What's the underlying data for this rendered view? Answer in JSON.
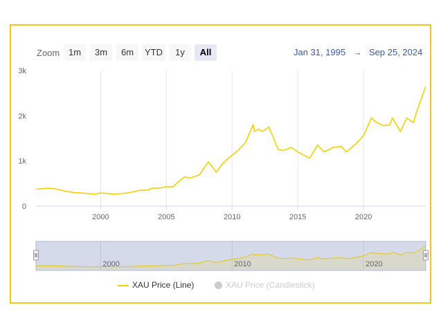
{
  "range_selector": {
    "zoom_label": "Zoom",
    "buttons": [
      "1m",
      "3m",
      "6m",
      "YTD",
      "1y",
      "All"
    ],
    "active": "All"
  },
  "date_range": {
    "from": "Jan 31, 1995",
    "arrow": "→",
    "to": "Sep 25, 2024"
  },
  "chart_data": {
    "type": "line",
    "title": "",
    "xlabel": "",
    "ylabel": "",
    "xlim": [
      1995.08,
      2024.73
    ],
    "ylim": [
      0,
      3000
    ],
    "x_ticks": [
      2000,
      2005,
      2010,
      2015,
      2020
    ],
    "x_tick_labels": [
      "2000",
      "2005",
      "2010",
      "2015",
      "2020"
    ],
    "y_ticks": [
      0,
      1000,
      2000,
      3000
    ],
    "y_tick_labels": [
      "0",
      "1k",
      "2k",
      "3k"
    ],
    "grid": {
      "x": true,
      "y": false
    },
    "navigator_tick_labels": [
      "2000",
      "2010",
      "2020"
    ],
    "series": [
      {
        "name": "XAU Price (Line)",
        "color": "#f5d000",
        "x": [
          1995.08,
          1996.0,
          1996.5,
          1997.0,
          1997.5,
          1998.0,
          1999.0,
          1999.6,
          1999.9,
          2000.5,
          2001.0,
          2001.5,
          2002.0,
          2002.5,
          2003.0,
          2003.5,
          2004.0,
          2004.5,
          2005.0,
          2005.5,
          2006.0,
          2006.4,
          2006.8,
          2007.5,
          2008.0,
          2008.2,
          2008.8,
          2009.3,
          2009.9,
          2010.5,
          2011.0,
          2011.6,
          2011.7,
          2012.0,
          2012.3,
          2012.8,
          2013.3,
          2013.5,
          2013.9,
          2014.5,
          2015.0,
          2015.9,
          2016.5,
          2017.0,
          2017.7,
          2018.3,
          2018.7,
          2019.5,
          2020.0,
          2020.6,
          2021.0,
          2021.5,
          2022.0,
          2022.2,
          2022.8,
          2023.3,
          2023.8,
          2024.0,
          2024.3,
          2024.73
        ],
        "y": [
          375,
          400,
          385,
          350,
          320,
          300,
          280,
          260,
          290,
          280,
          265,
          275,
          290,
          320,
          350,
          350,
          400,
          400,
          430,
          430,
          560,
          650,
          620,
          690,
          900,
          980,
          750,
          950,
          1100,
          1250,
          1400,
          1800,
          1650,
          1700,
          1650,
          1750,
          1400,
          1250,
          1230,
          1300,
          1200,
          1060,
          1350,
          1200,
          1300,
          1320,
          1200,
          1400,
          1560,
          1950,
          1850,
          1780,
          1800,
          1950,
          1650,
          1950,
          1850,
          2050,
          2300,
          2650
        ]
      },
      {
        "name": "XAU Price (Candlestick)",
        "color": "#cccccc",
        "visible": false
      }
    ]
  }
}
